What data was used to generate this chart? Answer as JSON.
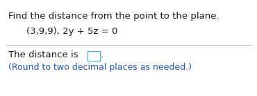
{
  "title_text": "Find the distance from the point to the plane.",
  "equation_text": "(3,9,9), 2y + 5z = 0",
  "answer_prefix": "The distance is ",
  "answer_suffix": ".",
  "note_text": "(Round to two decimal places as needed.)",
  "bg_color": "#ffffff",
  "title_color": "#1a1a1a",
  "equation_color": "#1a1a1a",
  "answer_color": "#1a1a1a",
  "note_color": "#2255bb",
  "title_fontsize": 9.5,
  "equation_fontsize": 9.5,
  "answer_fontsize": 9.5,
  "note_fontsize": 9.0,
  "line_color": "#bbbbbb",
  "box_edge_color": "#44aacc"
}
